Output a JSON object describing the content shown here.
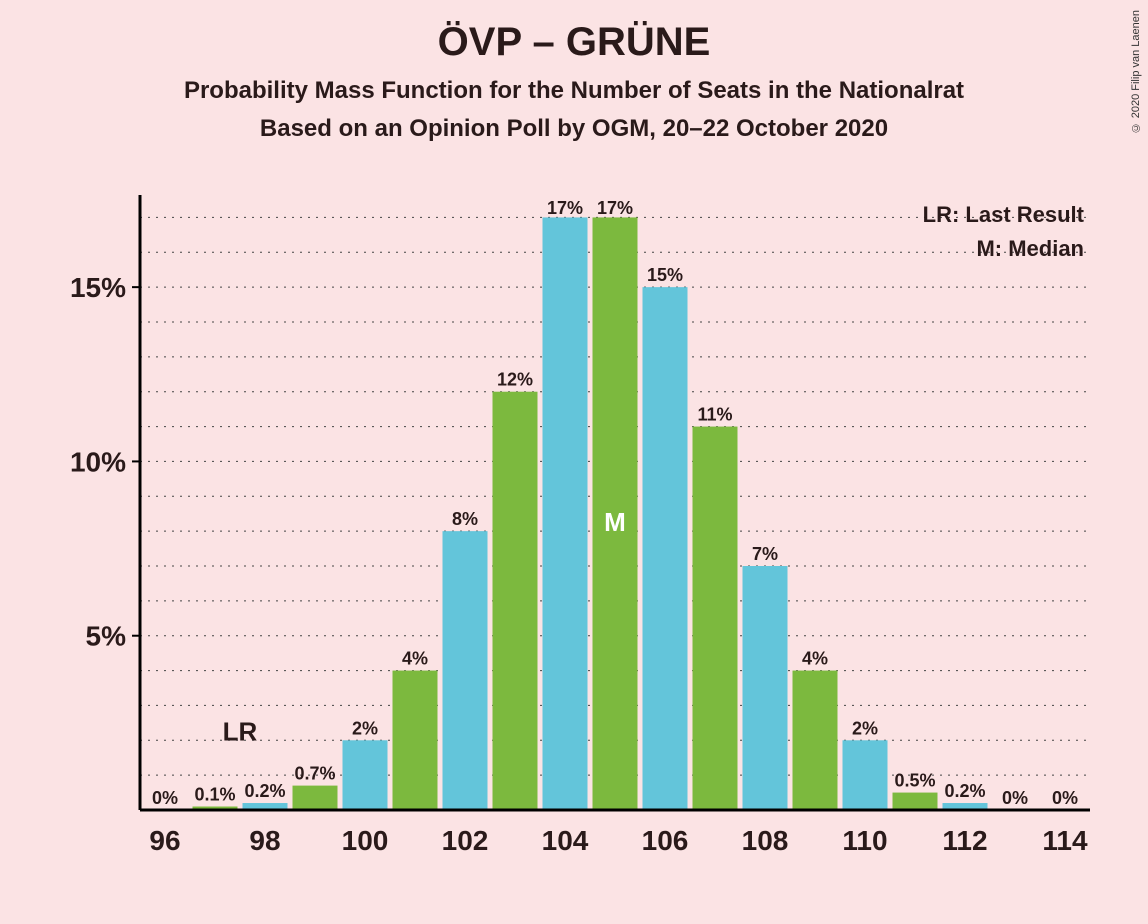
{
  "copyright": "© 2020 Filip van Laenen",
  "title": "ÖVP – GRÜNE",
  "subtitle1": "Probability Mass Function for the Number of Seats in the Nationalrat",
  "subtitle2": "Based on an Opinion Poll by OGM, 20–22 October 2020",
  "legend": {
    "lr": "LR: Last Result",
    "m": "M: Median"
  },
  "chart": {
    "type": "bar",
    "background_color": "#fbe3e4",
    "axis_color": "#000000",
    "grid_color": "#444444",
    "bar_colors": {
      "even": "#63c5da",
      "odd": "#7cb93e"
    },
    "x": {
      "categories": [
        96,
        97,
        98,
        99,
        100,
        101,
        102,
        103,
        104,
        105,
        106,
        107,
        108,
        109,
        110,
        111,
        112,
        113,
        114
      ],
      "tick_labels": [
        96,
        98,
        100,
        102,
        104,
        106,
        108,
        110,
        112,
        114
      ]
    },
    "y": {
      "ylim": [
        0,
        17.5
      ],
      "ticks": [
        5,
        10,
        15
      ],
      "tick_labels": [
        "5%",
        "10%",
        "15%"
      ]
    },
    "bars": [
      {
        "x": 96,
        "value": 0,
        "label": "0%"
      },
      {
        "x": 97,
        "value": 0.1,
        "label": "0.1%"
      },
      {
        "x": 98,
        "value": 0.2,
        "label": "0.2%"
      },
      {
        "x": 99,
        "value": 0.7,
        "label": "0.7%"
      },
      {
        "x": 100,
        "value": 2,
        "label": "2%"
      },
      {
        "x": 101,
        "value": 4,
        "label": "4%"
      },
      {
        "x": 102,
        "value": 8,
        "label": "8%"
      },
      {
        "x": 103,
        "value": 12,
        "label": "12%"
      },
      {
        "x": 104,
        "value": 17,
        "label": "17%"
      },
      {
        "x": 105,
        "value": 17,
        "label": "17%"
      },
      {
        "x": 106,
        "value": 15,
        "label": "15%"
      },
      {
        "x": 107,
        "value": 11,
        "label": "11%"
      },
      {
        "x": 108,
        "value": 7,
        "label": "7%"
      },
      {
        "x": 109,
        "value": 4,
        "label": "4%"
      },
      {
        "x": 110,
        "value": 2,
        "label": "2%"
      },
      {
        "x": 111,
        "value": 0.5,
        "label": "0.5%"
      },
      {
        "x": 112,
        "value": 0.2,
        "label": "0.2%"
      },
      {
        "x": 113,
        "value": 0,
        "label": "0%"
      },
      {
        "x": 114,
        "value": 0,
        "label": "0%"
      }
    ],
    "lr_position": 97,
    "lr_label": "LR",
    "median_position": 105,
    "median_label": "M",
    "bar_width_ratio": 0.9,
    "label_fontsize": 18,
    "axis_fontsize": 28,
    "title_fontsize": 40,
    "subtitle_fontsize": 24
  }
}
